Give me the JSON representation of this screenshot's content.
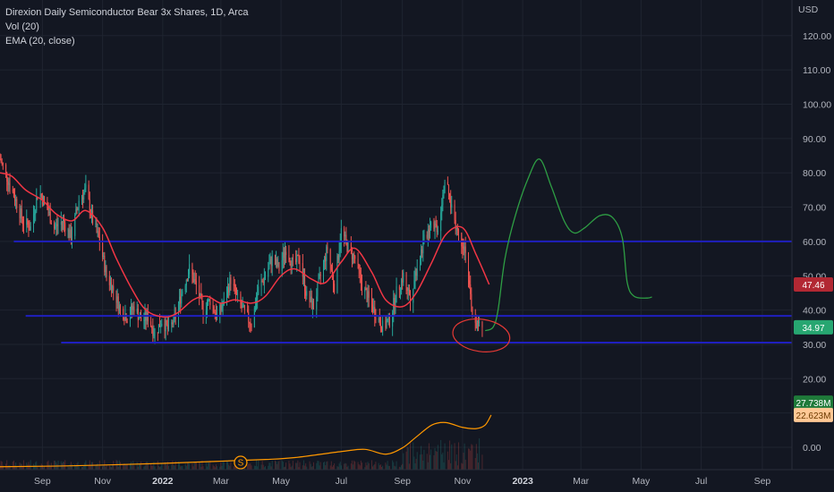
{
  "legend": {
    "title": "Direxion Daily Semiconductor Bear 3x Shares, 1D, Arca",
    "volume": "Vol (20)",
    "ema": "EMA (20, close)"
  },
  "colors": {
    "background": "#131722",
    "grid": "#1f2430",
    "up": "#26a69a",
    "down": "#ef5350",
    "ema": "#f23645",
    "volume_ma": "#ff9800",
    "support_lines": "#1f1fbf",
    "projection": "#2e9e44",
    "annotation_circle": "#e53935"
  },
  "chart_data": {
    "type": "candlestick",
    "currency_label": "USD",
    "y_ticks": [
      "120.00",
      "110.00",
      "100.00",
      "90.00",
      "80.00",
      "70.00",
      "60.00",
      "50.00",
      "40.00",
      "30.00",
      "20.00",
      "10.00",
      "0.00"
    ],
    "ylim": [
      -5,
      127
    ],
    "x_ticks": [
      {
        "label": "Sep",
        "date": "2021-09-01",
        "bold": false
      },
      {
        "label": "Nov",
        "date": "2021-11-01",
        "bold": false
      },
      {
        "label": "2022",
        "date": "2022-01-01",
        "bold": true
      },
      {
        "label": "Mar",
        "date": "2022-03-01",
        "bold": false
      },
      {
        "label": "May",
        "date": "2022-05-01",
        "bold": false
      },
      {
        "label": "Jul",
        "date": "2022-07-01",
        "bold": false
      },
      {
        "label": "Sep",
        "date": "2022-09-01",
        "bold": false
      },
      {
        "label": "Nov",
        "date": "2022-11-01",
        "bold": false
      },
      {
        "label": "2023",
        "date": "2023-01-01",
        "bold": true
      },
      {
        "label": "Mar",
        "date": "2023-03-01",
        "bold": false
      },
      {
        "label": "May",
        "date": "2023-05-01",
        "bold": false
      },
      {
        "label": "Jul",
        "date": "2023-07-01",
        "bold": false
      },
      {
        "label": "Sep",
        "date": "2023-09-01",
        "bold": false
      }
    ],
    "xlim": [
      "2021-07-20",
      "2023-10-01"
    ],
    "price_series": {
      "name": "close",
      "points": [
        [
          "2021-07-20",
          84
        ],
        [
          "2021-07-28",
          78
        ],
        [
          "2021-08-05",
          72
        ],
        [
          "2021-08-12",
          66
        ],
        [
          "2021-08-20",
          64
        ],
        [
          "2021-08-28",
          75
        ],
        [
          "2021-09-05",
          70
        ],
        [
          "2021-09-13",
          64
        ],
        [
          "2021-09-22",
          66
        ],
        [
          "2021-09-30",
          61
        ],
        [
          "2021-10-08",
          72
        ],
        [
          "2021-10-15",
          75
        ],
        [
          "2021-10-22",
          66
        ],
        [
          "2021-10-29",
          60
        ],
        [
          "2021-11-05",
          50
        ],
        [
          "2021-11-12",
          46
        ],
        [
          "2021-11-19",
          40
        ],
        [
          "2021-11-26",
          38
        ],
        [
          "2021-12-03",
          41
        ],
        [
          "2021-12-10",
          37
        ],
        [
          "2021-12-17",
          38
        ],
        [
          "2021-12-24",
          33
        ],
        [
          "2021-12-31",
          37
        ],
        [
          "2022-01-07",
          34
        ],
        [
          "2022-01-14",
          38
        ],
        [
          "2022-01-21",
          46
        ],
        [
          "2022-01-28",
          52
        ],
        [
          "2022-02-04",
          47
        ],
        [
          "2022-02-11",
          40
        ],
        [
          "2022-02-18",
          43
        ],
        [
          "2022-02-25",
          38
        ],
        [
          "2022-03-04",
          42
        ],
        [
          "2022-03-11",
          49
        ],
        [
          "2022-03-18",
          43
        ],
        [
          "2022-03-25",
          39
        ],
        [
          "2022-04-01",
          36
        ],
        [
          "2022-04-08",
          46
        ],
        [
          "2022-04-15",
          50
        ],
        [
          "2022-04-22",
          55
        ],
        [
          "2022-04-29",
          52
        ],
        [
          "2022-05-06",
          58
        ],
        [
          "2022-05-13",
          53
        ],
        [
          "2022-05-20",
          55
        ],
        [
          "2022-05-27",
          44
        ],
        [
          "2022-06-03",
          41
        ],
        [
          "2022-06-10",
          50
        ],
        [
          "2022-06-17",
          58
        ],
        [
          "2022-06-24",
          47
        ],
        [
          "2022-07-01",
          63
        ],
        [
          "2022-07-08",
          58
        ],
        [
          "2022-07-15",
          55
        ],
        [
          "2022-07-22",
          47
        ],
        [
          "2022-07-29",
          43
        ],
        [
          "2022-08-05",
          39
        ],
        [
          "2022-08-12",
          35
        ],
        [
          "2022-08-19",
          37
        ],
        [
          "2022-08-26",
          45
        ],
        [
          "2022-09-02",
          50
        ],
        [
          "2022-09-09",
          44
        ],
        [
          "2022-09-16",
          53
        ],
        [
          "2022-09-23",
          60
        ],
        [
          "2022-09-30",
          66
        ],
        [
          "2022-10-07",
          64
        ],
        [
          "2022-10-14",
          78
        ],
        [
          "2022-10-21",
          70
        ],
        [
          "2022-10-28",
          62
        ],
        [
          "2022-11-04",
          58
        ],
        [
          "2022-11-10",
          40
        ],
        [
          "2022-11-15",
          36
        ],
        [
          "2022-11-21",
          34.97
        ]
      ]
    },
    "ema_series": {
      "name": "EMA (20, close)",
      "points": [
        [
          "2021-07-20",
          80
        ],
        [
          "2021-08-01",
          79
        ],
        [
          "2021-08-15",
          75
        ],
        [
          "2021-09-01",
          72
        ],
        [
          "2021-09-15",
          68
        ],
        [
          "2021-10-01",
          66
        ],
        [
          "2021-10-15",
          69
        ],
        [
          "2021-11-01",
          64
        ],
        [
          "2021-11-15",
          55
        ],
        [
          "2021-12-01",
          46
        ],
        [
          "2021-12-15",
          40
        ],
        [
          "2022-01-01",
          38
        ],
        [
          "2022-01-15",
          39
        ],
        [
          "2022-02-01",
          43
        ],
        [
          "2022-02-15",
          44
        ],
        [
          "2022-03-01",
          42
        ],
        [
          "2022-03-15",
          43
        ],
        [
          "2022-04-01",
          42
        ],
        [
          "2022-04-15",
          44
        ],
        [
          "2022-05-01",
          50
        ],
        [
          "2022-05-15",
          52
        ],
        [
          "2022-06-01",
          49
        ],
        [
          "2022-06-15",
          48
        ],
        [
          "2022-07-01",
          54
        ],
        [
          "2022-07-15",
          58
        ],
        [
          "2022-08-01",
          51
        ],
        [
          "2022-08-15",
          43
        ],
        [
          "2022-09-01",
          41
        ],
        [
          "2022-09-15",
          45
        ],
        [
          "2022-10-01",
          54
        ],
        [
          "2022-10-15",
          62
        ],
        [
          "2022-11-01",
          64
        ],
        [
          "2022-11-15",
          56
        ],
        [
          "2022-11-28",
          47.46
        ]
      ]
    },
    "volume_ma_series": {
      "name": "Vol (20)",
      "points": [
        [
          "2021-07-20",
          1.2
        ],
        [
          "2021-10-01",
          1.6
        ],
        [
          "2022-01-01",
          2.6
        ],
        [
          "2022-03-01",
          3.5
        ],
        [
          "2022-04-15",
          4.2
        ],
        [
          "2022-05-15",
          5.0
        ],
        [
          "2022-07-01",
          7.5
        ],
        [
          "2022-07-25",
          8.4
        ],
        [
          "2022-08-15",
          6.4
        ],
        [
          "2022-09-01",
          9.0
        ],
        [
          "2022-09-15",
          13.5
        ],
        [
          "2022-10-01",
          18.5
        ],
        [
          "2022-10-15",
          19.5
        ],
        [
          "2022-11-01",
          17.5
        ],
        [
          "2022-11-15",
          17.0
        ],
        [
          "2022-11-24",
          18.5
        ],
        [
          "2022-11-30",
          22.623
        ]
      ]
    },
    "horizontal_lines": [
      {
        "price": 60,
        "from": "2021-08-03",
        "to": "2023-10-01"
      },
      {
        "price": 38.3,
        "from": "2021-08-15",
        "to": "2023-10-01"
      },
      {
        "price": 30.5,
        "from": "2021-09-20",
        "to": "2023-10-01"
      }
    ],
    "projection_path": [
      [
        "2022-11-24",
        34
      ],
      [
        "2022-12-02",
        35
      ],
      [
        "2022-12-07",
        40
      ],
      [
        "2022-12-14",
        55
      ],
      [
        "2022-12-24",
        67
      ],
      [
        "2023-01-06",
        78
      ],
      [
        "2023-01-18",
        84
      ],
      [
        "2023-01-30",
        76
      ],
      [
        "2023-02-12",
        66
      ],
      [
        "2023-02-22",
        62.5
      ],
      [
        "2023-03-05",
        64
      ],
      [
        "2023-03-20",
        67.5
      ],
      [
        "2023-04-02",
        67
      ],
      [
        "2023-04-12",
        61
      ],
      [
        "2023-04-17",
        48
      ],
      [
        "2023-04-24",
        44
      ],
      [
        "2023-05-07",
        43.5
      ],
      [
        "2023-05-12",
        43.8
      ]
    ],
    "price_badges": [
      {
        "value": "47.46",
        "price": 47.46,
        "color": "#b22833",
        "text_color": "#ffffff"
      },
      {
        "value": "34.97",
        "price": 34.97,
        "color": "#27a671",
        "text_color": "#ffffff"
      }
    ],
    "volume_badges": [
      {
        "value": "27.738M",
        "volume": 27.738,
        "color": "#1f7a3a",
        "text_color": "#ffffff"
      },
      {
        "value": "22.623M",
        "volume": 22.623,
        "color": "#ffc895",
        "text_color": "#6b3a00"
      }
    ],
    "event_marker": {
      "label": "S",
      "date": "2022-03-21"
    }
  }
}
